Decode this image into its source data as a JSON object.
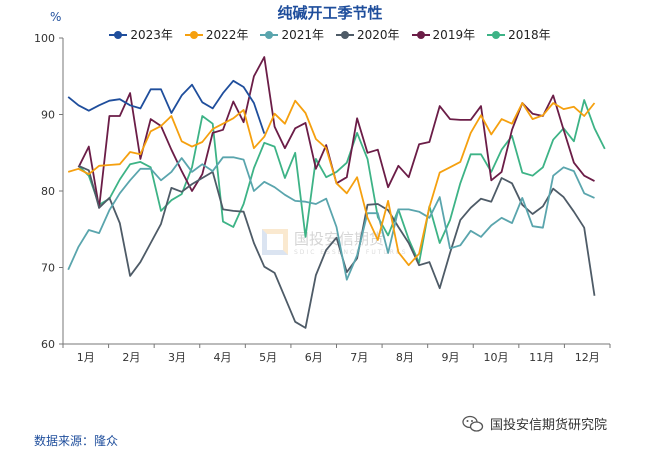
{
  "header": {
    "title": "纯碱开工季节性",
    "unit": "%"
  },
  "footer": {
    "source": "数据来源：隆众",
    "brand": "国投安信期货研究院",
    "brand_icon": "wechat-icon"
  },
  "watermark": {
    "text": "国投安信期货",
    "sub": "SDIC ESSENCE FUTURES"
  },
  "chart_data": {
    "type": "line",
    "title": "纯碱开工季节性",
    "ylabel": "%",
    "ylim": [
      60,
      100
    ],
    "yticks": [
      60,
      70,
      80,
      90,
      100
    ],
    "x_unit": "week",
    "xlim": [
      0.5,
      53.5
    ],
    "xtick_labels": [
      "1月",
      "2月",
      "3月",
      "4月",
      "5月",
      "6月",
      "7月",
      "8月",
      "9月",
      "10月",
      "11月",
      "12月"
    ],
    "grid": false,
    "legend": "top",
    "series": [
      {
        "name": "2023年",
        "color": "#1f4e9c",
        "start_week": 1,
        "values": [
          92.3,
          91.2,
          90.5,
          91.2,
          91.8,
          92.0,
          91.2,
          90.8,
          93.3,
          93.3,
          90.2,
          92.5,
          93.9,
          91.6,
          90.8,
          92.8,
          94.4,
          93.6,
          91.5,
          87.5
        ]
      },
      {
        "name": "2022年",
        "color": "#f5a00f",
        "start_week": 1,
        "values": [
          82.5,
          82.9,
          82.2,
          83.3,
          83.4,
          83.5,
          85.1,
          84.8,
          87.8,
          88.5,
          89.8,
          86.5,
          85.8,
          86.4,
          88.1,
          88.8,
          89.5,
          90.6,
          85.6,
          87.1,
          90.1,
          88.8,
          91.8,
          90.2,
          86.8,
          85.6,
          81.0,
          79.7,
          81.8,
          76.5,
          73.6,
          78.7,
          72.0,
          70.3,
          71.8,
          77.9,
          82.4,
          83.1,
          83.8,
          87.6,
          89.9,
          87.4,
          89.4,
          88.8,
          91.5,
          89.4,
          89.9,
          91.5,
          90.7,
          91.0,
          89.8,
          91.5
        ]
      },
      {
        "name": "2021年",
        "color": "#5aa5ad",
        "start_week": 1,
        "values": [
          69.7,
          72.7,
          74.9,
          74.5,
          77.5,
          79.7,
          81.4,
          82.9,
          82.9,
          81.4,
          82.5,
          84.3,
          82.5,
          83.5,
          82.6,
          84.4,
          84.4,
          84.1,
          80.0,
          81.2,
          80.5,
          79.5,
          78.7,
          78.6,
          78.3,
          79.0,
          75.3,
          68.4,
          71.6,
          77.1,
          77.1,
          71.9,
          77.6,
          77.6,
          77.3,
          76.5,
          79.2,
          72.5,
          72.9,
          74.8,
          74.0,
          75.5,
          76.5,
          75.8,
          79.1,
          75.4,
          75.2,
          82.0,
          83.1,
          82.6,
          79.7,
          79.1
        ]
      },
      {
        "name": "2020年",
        "color": "#4e5b67",
        "start_week": 2,
        "values": [
          83.3,
          82.7,
          77.8,
          79.1,
          75.8,
          68.9,
          70.7,
          73.2,
          75.7,
          80.4,
          79.9,
          80.9,
          81.7,
          82.5,
          77.6,
          77.4,
          77.3,
          73.2,
          70.1,
          69.3,
          66.1,
          62.9,
          62.1,
          69.0,
          72.3,
          73.9,
          69.4,
          71.2,
          78.2,
          78.3,
          77.5,
          75.3,
          73.2,
          70.3,
          70.7,
          67.3,
          71.9,
          76.2,
          77.8,
          79.0,
          78.6,
          81.7,
          81.0,
          78.2,
          77.0,
          78.0,
          80.3,
          79.2,
          77.3,
          75.2,
          66.3
        ]
      },
      {
        "name": "2019年",
        "color": "#6b1d47",
        "start_week": 2,
        "values": [
          83.1,
          85.8,
          77.8,
          89.8,
          89.8,
          92.8,
          84.2,
          89.4,
          88.5,
          85.4,
          82.6,
          80.0,
          82.2,
          87.6,
          88.0,
          91.7,
          89.0,
          95.0,
          97.5,
          88.4,
          85.6,
          88.2,
          88.9,
          82.9,
          86.0,
          81.0,
          81.8,
          89.5,
          85.0,
          85.4,
          80.5,
          83.3,
          81.8,
          86.1,
          86.4,
          91.1,
          89.4,
          89.3,
          89.3,
          91.1,
          81.4,
          82.5,
          88.0,
          91.5,
          90.1,
          89.8,
          92.5,
          88.0,
          83.7,
          82.0,
          81.3
        ]
      },
      {
        "name": "2018年",
        "color": "#3db386",
        "start_week": 2,
        "values": [
          83.3,
          82.0,
          78.2,
          79.0,
          81.5,
          83.5,
          83.8,
          83.1,
          77.4,
          78.8,
          79.6,
          83.1,
          89.8,
          88.8,
          76.0,
          75.3,
          78.3,
          83.0,
          86.3,
          85.8,
          81.7,
          85.0,
          74.0,
          84.2,
          81.8,
          82.5,
          83.7,
          87.6,
          84.2,
          76.6,
          74.2,
          77.6,
          73.7,
          70.6,
          78.0,
          73.2,
          76.2,
          81.0,
          84.8,
          84.8,
          82.5,
          85.4,
          87.2,
          82.4,
          82.0,
          83.1,
          86.7,
          88.2,
          86.5,
          91.9,
          88.2,
          85.5
        ]
      }
    ]
  }
}
